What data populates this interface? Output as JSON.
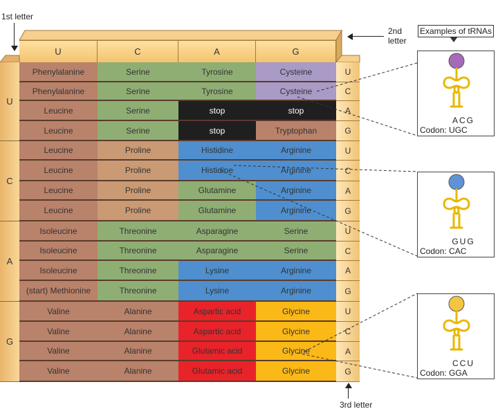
{
  "labels": {
    "first_letter": "1st letter",
    "second_letter_line1": "2nd",
    "second_letter_line2": "letter",
    "third_letter": "3rd letter",
    "examples": "Examples of tRNAs"
  },
  "bases": [
    "U",
    "C",
    "A",
    "G"
  ],
  "rows": [
    [
      "Phenylalanine",
      "Serine",
      "Tyrosine",
      "Cysteine"
    ],
    [
      "Phenylalanine",
      "Serine",
      "Tyrosine",
      "Cysteine"
    ],
    [
      "Leucine",
      "Serine",
      "stop",
      "stop"
    ],
    [
      "Leucine",
      "Serine",
      "stop",
      "Tryptophan"
    ],
    [
      "Leucine",
      "Proline",
      "Histidine",
      "Arginine"
    ],
    [
      "Leucine",
      "Proline",
      "Histidine",
      "Arginine"
    ],
    [
      "Leucine",
      "Proline",
      "Glutamine",
      "Arginine"
    ],
    [
      "Leucine",
      "Proline",
      "Glutamine",
      "Arginine"
    ],
    [
      "Isoleucine",
      "Threonine",
      "Asparagine",
      "Serine"
    ],
    [
      "Isoleucine",
      "Threonine",
      "Asparagine",
      "Serine"
    ],
    [
      "Isoleucine",
      "Threonine",
      "Lysine",
      "Arginine"
    ],
    [
      "(start) Methionine",
      "Threonine",
      "Lysine",
      "Arginine"
    ],
    [
      "Valine",
      "Alanine",
      "Aspartic acid",
      "Glycine"
    ],
    [
      "Valine",
      "Alanine",
      "Aspartic acid",
      "Glycine"
    ],
    [
      "Valine",
      "Alanine",
      "Glutamic acid",
      "Glycine"
    ],
    [
      "Valine",
      "Alanine",
      "Glutamic acid",
      "Glycine"
    ]
  ],
  "colors": {
    "Phenylalanine": "#b9826a",
    "Leucine": "#b9826a",
    "Isoleucine": "#b9826a",
    "(start) Methionine": "#b9826a",
    "Valine": "#b9826a",
    "Tryptophan": "#b9826a",
    "Proline": "#c99a74",
    "Serine": "#8fae74",
    "Threonine": "#8fae74",
    "Alanine": "#b9826a",
    "Tyrosine": "#8fae74",
    "Asparagine": "#8fae74",
    "Glutamine": "#8fae74",
    "Cysteine": "#a99ac6",
    "Histidine": "#4f8fcf",
    "Arginine": "#4f8fcf",
    "Lysine": "#4f8fcf",
    "Aspartic acid": "#e8232a",
    "Glutamic acid": "#e8232a",
    "Glycine": "#fbb917",
    "stop": "#1f1f1f"
  },
  "trnas": [
    {
      "anticodon": "ACG",
      "codon_label": "Codon: UGC",
      "ball_color": "#a66ab8"
    },
    {
      "anticodon": "GUG",
      "codon_label": "Codon: CAC",
      "ball_color": "#5f93d6"
    },
    {
      "anticodon": "CCU",
      "codon_label": "Codon: GGA",
      "ball_color": "#f4c542"
    }
  ]
}
